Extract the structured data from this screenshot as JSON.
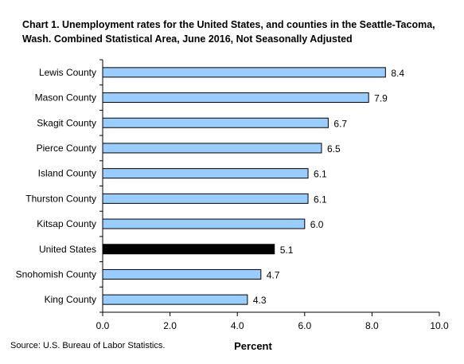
{
  "chart_data": {
    "type": "bar",
    "orientation": "horizontal",
    "title_lines": [
      "Chart 1.  Unemployment rates for the United States, and counties in the Seattle-Tacoma,",
      "Wash. Combined Statistical Area, June 2016,  Not Seasonally Adjusted"
    ],
    "categories": [
      "Lewis County",
      "Mason County",
      "Skagit County",
      "Pierce County",
      "Island County",
      "Thurston County",
      "Kitsap County",
      "United States",
      "Snohomish County",
      "King County"
    ],
    "values": [
      8.4,
      7.9,
      6.7,
      6.5,
      6.1,
      6.1,
      6.0,
      5.1,
      4.7,
      4.3
    ],
    "value_labels": [
      "8.4",
      "7.9",
      "6.7",
      "6.5",
      "6.1",
      "6.1",
      "6.0",
      "5.1",
      "4.7",
      "4.3"
    ],
    "highlight_category": "United States",
    "colors": {
      "bar": "#99ccff",
      "highlight": "#000000",
      "bar_border": "#000000"
    },
    "xlabel": "Percent",
    "xlim": [
      0,
      10
    ],
    "xticks": [
      "0.0",
      "2.0",
      "4.0",
      "6.0",
      "8.0",
      "10.0"
    ],
    "grid": false,
    "legend": false
  },
  "source": "Source: U.S. Bureau of Labor Statistics."
}
